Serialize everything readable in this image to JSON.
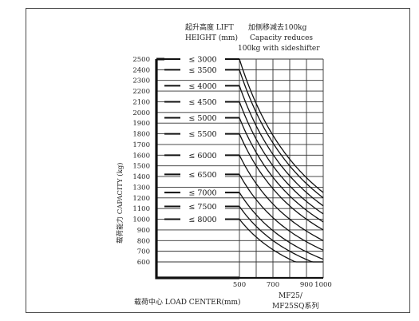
{
  "chart_data": {
    "type": "line",
    "title_lines_left": [
      "起升高度 LIFT",
      "HEIGHT (mm)"
    ],
    "title_lines_right": [
      "加侧移减去100kg",
      "Capacity reduces",
      "100kg with sideshifter"
    ],
    "ylabel": "载荷能力 CAPACITY (kg)",
    "xlabel": "载荷中心 LOAD CENTER(mm)",
    "model_lines": [
      "MF25/",
      "MF25SQ系列"
    ],
    "y_ticks": [
      "2500",
      "2400",
      "2300",
      "2200",
      "2100",
      "2000",
      "1900",
      "1800",
      "1700",
      "1600",
      "1500",
      "1400",
      "1300",
      "1200",
      "1100",
      "1000",
      "900",
      "800",
      "700",
      "600"
    ],
    "x_ticks": [
      "500",
      "700",
      "900",
      "1000"
    ],
    "x_values": [
      500,
      600,
      700,
      800,
      900,
      1000
    ],
    "ylim": [
      600,
      2500
    ],
    "xlim": [
      500,
      1000
    ],
    "series": [
      {
        "name": "≤ 3000",
        "y_at_500": 2500
      },
      {
        "name": "≤ 3500",
        "y_at_500": 2400
      },
      {
        "name": "≤ 4000",
        "y_at_500": 2250
      },
      {
        "name": "≤ 4500",
        "y_at_500": 2100
      },
      {
        "name": "≤ 5000",
        "y_at_500": 1950
      },
      {
        "name": "≤ 5500",
        "y_at_500": 1800
      },
      {
        "name": "≤ 6000",
        "y_at_500": 1600
      },
      {
        "name": "≤ 6500",
        "y_at_500": 1420
      },
      {
        "name": "≤ 7000",
        "y_at_500": 1250
      },
      {
        "name": "≤ 7500",
        "y_at_500": 1120
      },
      {
        "name": "≤ 8000",
        "y_at_500": 1000
      }
    ]
  }
}
